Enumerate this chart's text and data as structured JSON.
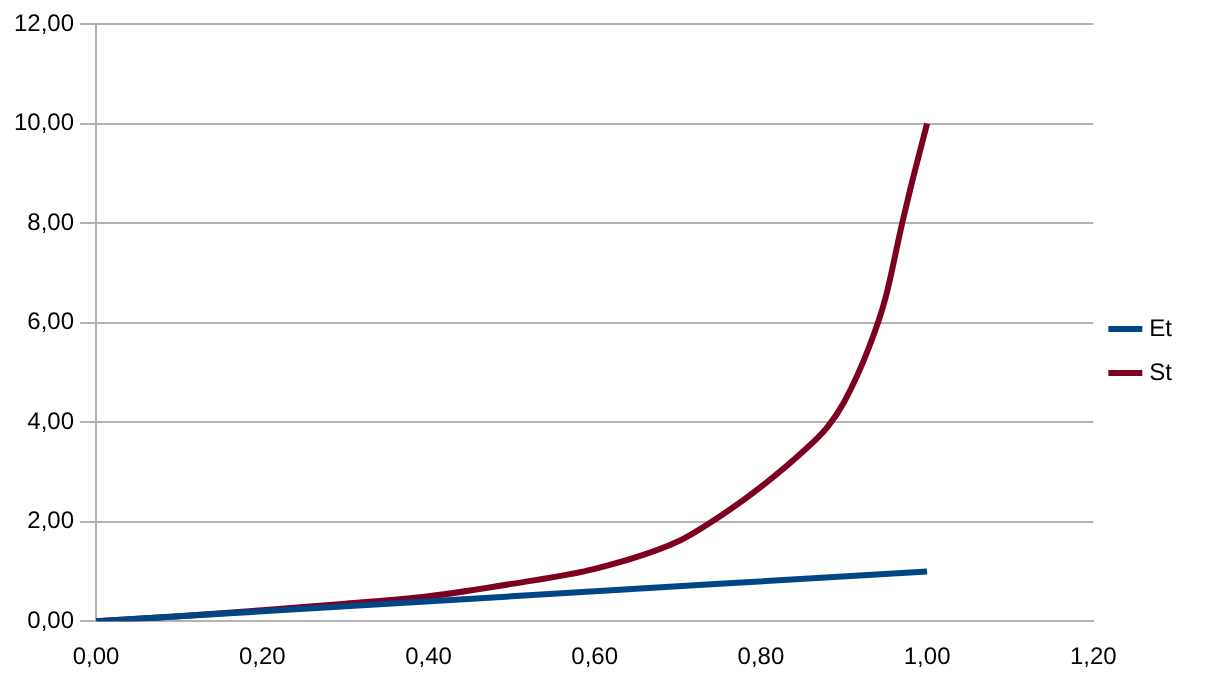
{
  "chart_data": {
    "type": "line",
    "xlim": [
      0,
      1.2
    ],
    "ylim": [
      0,
      12
    ],
    "xticks": [
      {
        "value": 0,
        "label": "0,00"
      },
      {
        "value": 0.2,
        "label": "0,20"
      },
      {
        "value": 0.4,
        "label": "0,40"
      },
      {
        "value": 0.6,
        "label": "0,60"
      },
      {
        "value": 0.8,
        "label": "0,80"
      },
      {
        "value": 1,
        "label": "1,00"
      },
      {
        "value": 1.2,
        "label": "1,20"
      }
    ],
    "yticks": [
      {
        "value": 0,
        "label": "0,00"
      },
      {
        "value": 2,
        "label": "2,00"
      },
      {
        "value": 4,
        "label": "4,00"
      },
      {
        "value": 6,
        "label": "6,00"
      },
      {
        "value": 8,
        "label": "8,00"
      },
      {
        "value": 10,
        "label": "10,00"
      },
      {
        "value": 12,
        "label": "12,00"
      }
    ],
    "grid": "y",
    "legend": "right",
    "marker": "none",
    "line_style": "solid",
    "series": [
      {
        "name": "Et",
        "color": "#004586",
        "x": [
          0,
          0.5,
          1
        ],
        "values": [
          0,
          0.5,
          1
        ]
      },
      {
        "name": "St",
        "color": "#7e0021",
        "x": [
          0,
          0.1,
          0.2,
          0.3,
          0.4,
          0.5,
          0.6,
          0.7,
          0.75,
          0.8,
          0.85,
          0.88,
          0.9,
          0.93,
          0.95,
          0.97,
          0.98,
          1
        ],
        "values": [
          0,
          0.1,
          0.22,
          0.35,
          0.5,
          0.75,
          1.05,
          1.6,
          2.1,
          2.7,
          3.4,
          3.9,
          4.4,
          5.5,
          6.5,
          8,
          8.7,
          10
        ]
      }
    ]
  }
}
